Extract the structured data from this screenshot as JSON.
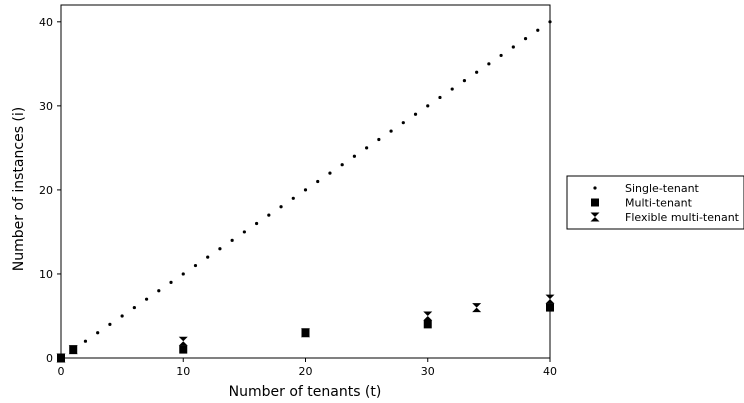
{
  "chart_data": {
    "type": "scatter",
    "title": "",
    "xlabel": "Number of tenants (t)",
    "ylabel": "Number of instances (i)",
    "xlim": [
      0,
      40
    ],
    "ylim": [
      0,
      42
    ],
    "xticks": [
      0,
      10,
      20,
      30,
      40
    ],
    "yticks": [
      0,
      10,
      20,
      30,
      40
    ],
    "grid": false,
    "legend": "outside-right",
    "series": [
      {
        "name": "Single-tenant",
        "marker": "dot",
        "x": [
          0,
          1,
          2,
          3,
          4,
          5,
          6,
          7,
          8,
          9,
          10,
          11,
          12,
          13,
          14,
          15,
          16,
          17,
          18,
          19,
          20,
          21,
          22,
          23,
          24,
          25,
          26,
          27,
          28,
          29,
          30,
          31,
          32,
          33,
          34,
          35,
          36,
          37,
          38,
          39,
          40
        ],
        "y": [
          0,
          1,
          2,
          3,
          4,
          5,
          6,
          7,
          8,
          9,
          10,
          11,
          12,
          13,
          14,
          15,
          16,
          17,
          18,
          19,
          20,
          21,
          22,
          23,
          24,
          25,
          26,
          27,
          28,
          29,
          30,
          31,
          32,
          33,
          34,
          35,
          36,
          37,
          38,
          39,
          40
        ]
      },
      {
        "name": "Multi-tenant",
        "marker": "square",
        "x": [
          0,
          1,
          10,
          20,
          30,
          40
        ],
        "y": [
          0,
          1,
          1,
          3,
          4,
          6
        ]
      },
      {
        "name": "Flexible multi-tenant",
        "marker": "hourglass",
        "x": [
          0,
          1,
          10,
          20,
          30,
          34,
          40
        ],
        "y": [
          0,
          1,
          2,
          3,
          5,
          6,
          7
        ]
      }
    ]
  }
}
